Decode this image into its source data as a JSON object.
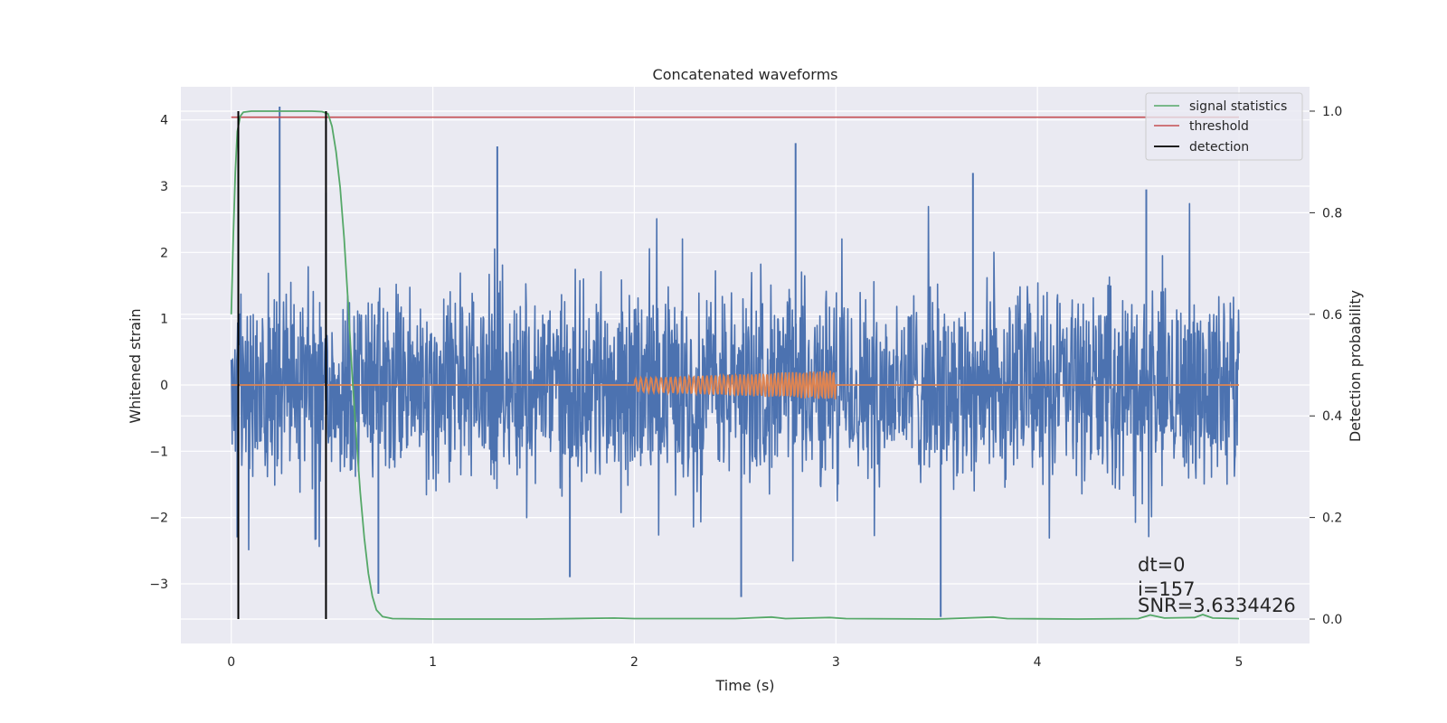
{
  "chart_data": {
    "type": "line",
    "title": "Concatenated waveforms",
    "xlabel": "Time (s)",
    "ylabel": "Whitened strain",
    "y2label": "Detection probability",
    "xlim": [
      -0.25,
      5.35
    ],
    "ylim": [
      -3.9,
      4.5
    ],
    "y2lim": [
      -0.048,
      1.048
    ],
    "xticks": [
      0,
      1,
      2,
      3,
      4,
      5
    ],
    "xtick_labels": [
      "0",
      "1",
      "2",
      "3",
      "4",
      "5"
    ],
    "yticks": [
      -3,
      -2,
      -1,
      0,
      1,
      2,
      3,
      4
    ],
    "ytick_labels": [
      "−3",
      "−2",
      "−1",
      "0",
      "1",
      "2",
      "3",
      "4"
    ],
    "y2ticks": [
      0.0,
      0.2,
      0.4,
      0.6,
      0.8,
      1.0
    ],
    "y2tick_labels": [
      "0.0",
      "0.2",
      "0.4",
      "0.6",
      "0.8",
      "1.0"
    ],
    "grid": true,
    "legend_position": "top-right",
    "series": [
      {
        "name": "",
        "axis": "left",
        "color": "#4c72b0",
        "description_kind": "noise",
        "x_range": [
          0,
          5
        ],
        "typical_amplitude": 1.2,
        "spikes": [
          {
            "x": 0.24,
            "y": 4.2
          },
          {
            "x": 0.47,
            "y": 2.9
          },
          {
            "x": 1.32,
            "y": 3.6
          },
          {
            "x": 2.8,
            "y": 3.65
          },
          {
            "x": 3.68,
            "y": 3.2
          },
          {
            "x": 3.52,
            "y": -3.5
          },
          {
            "x": 2.53,
            "y": -3.2
          },
          {
            "x": 0.73,
            "y": -3.15
          },
          {
            "x": 4.54,
            "y": 2.95
          },
          {
            "x": 0.03,
            "y": -2.3
          },
          {
            "x": 1.68,
            "y": -2.9
          }
        ]
      },
      {
        "name": "",
        "axis": "left",
        "color": "#dd8452",
        "description_kind": "chirp",
        "x_range": [
          0,
          5
        ],
        "chirp_start": 2.0,
        "chirp_end": 3.0,
        "amp_start": 0.1,
        "amp_end": 0.22
      },
      {
        "name": "signal statistics",
        "axis": "right",
        "color": "#55a868",
        "x": [
          0.0,
          0.01,
          0.02,
          0.03,
          0.045,
          0.06,
          0.1,
          0.2,
          0.3,
          0.4,
          0.45,
          0.48,
          0.5,
          0.52,
          0.54,
          0.56,
          0.58,
          0.6,
          0.62,
          0.64,
          0.66,
          0.68,
          0.7,
          0.72,
          0.75,
          0.8,
          1.0,
          1.5,
          1.9,
          2.0,
          2.5,
          2.68,
          2.75,
          2.97,
          3.05,
          3.5,
          3.78,
          3.85,
          4.2,
          4.5,
          4.56,
          4.63,
          4.78,
          4.82,
          4.87,
          5.0
        ],
        "y": [
          0.6,
          0.75,
          0.88,
          0.96,
          0.99,
          0.998,
          1.0,
          1.0,
          1.0,
          1.0,
          0.999,
          0.995,
          0.97,
          0.92,
          0.85,
          0.75,
          0.62,
          0.48,
          0.36,
          0.25,
          0.16,
          0.09,
          0.045,
          0.018,
          0.005,
          0.001,
          0.0,
          0.0,
          0.002,
          0.001,
          0.001,
          0.004,
          0.001,
          0.003,
          0.001,
          0.0,
          0.004,
          0.001,
          0.0,
          0.001,
          0.008,
          0.002,
          0.003,
          0.009,
          0.002,
          0.001
        ]
      },
      {
        "name": "threshold",
        "axis": "right",
        "color": "#c44e52",
        "x": [
          0.0,
          5.0
        ],
        "y": [
          0.988,
          0.988
        ]
      },
      {
        "name": "detection",
        "axis": "right",
        "color": "#000000",
        "vlines": [
          0.035,
          0.47
        ],
        "y_range": [
          0.0,
          1.0
        ]
      }
    ],
    "annotations": [
      "dt=0",
      "i=157",
      "SNR=3.6334426"
    ]
  },
  "colors": {
    "plot_background": "#eaeaf2",
    "grid": "#ffffff"
  }
}
